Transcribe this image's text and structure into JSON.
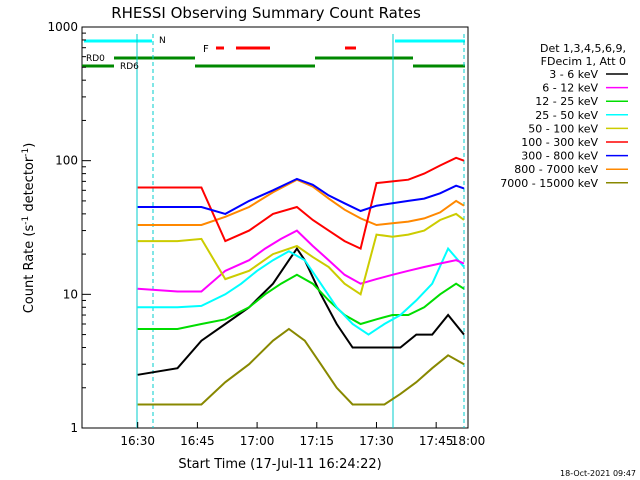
{
  "chart_data": {
    "type": "line",
    "title": "RHESSI Observing Summary Count Rates",
    "xlabel": "Start Time (17-Jul-11 16:24:22)",
    "ylabel_main": "Count Rate (s",
    "ylabel_sup1": "-1",
    "ylabel_mid": " detector",
    "ylabel_sup2": "-1",
    "ylabel_end": ")",
    "timestamp": "18-Oct-2021 09:47",
    "y_scale": "log",
    "ylim": [
      1,
      1000
    ],
    "xlim_minutes": [
      16.0,
      113.0
    ],
    "x_ticks": [
      {
        "label": "16:30",
        "min": 30
      },
      {
        "label": "16:45",
        "min": 45
      },
      {
        "label": "17:00",
        "min": 60
      },
      {
        "label": "17:15",
        "min": 75
      },
      {
        "label": "17:30",
        "min": 90
      },
      {
        "label": "17:45",
        "min": 105
      },
      {
        "label": "18:00",
        "min": 120
      }
    ],
    "y_ticks": [
      {
        "label": "1",
        "v": 1
      },
      {
        "label": "10",
        "v": 10
      },
      {
        "label": "100",
        "v": 100
      },
      {
        "label": "1000",
        "v": 1000
      }
    ],
    "legend_header": [
      "Det 1,3,4,5,6,9,",
      "FDecim 1, Att 0"
    ],
    "legend_position": "right",
    "series": [
      {
        "name": "3 - 6 keV",
        "color": "#000000",
        "points": [
          [
            30,
            2.5
          ],
          [
            40,
            2.8
          ],
          [
            46,
            4.5
          ],
          [
            52,
            6
          ],
          [
            58,
            8
          ],
          [
            64,
            12
          ],
          [
            68,
            18
          ],
          [
            70,
            22
          ],
          [
            72,
            18
          ],
          [
            76,
            10
          ],
          [
            80,
            6
          ],
          [
            84,
            4
          ],
          [
            88,
            4
          ],
          [
            92,
            4
          ],
          [
            96,
            4
          ],
          [
            100,
            5
          ],
          [
            104,
            5
          ],
          [
            108,
            7
          ],
          [
            112,
            5
          ]
        ]
      },
      {
        "name": "6 - 12 keV",
        "color": "#ff00ff",
        "points": [
          [
            30,
            11
          ],
          [
            40,
            10.5
          ],
          [
            46,
            10.5
          ],
          [
            52,
            15
          ],
          [
            58,
            18
          ],
          [
            62,
            22
          ],
          [
            66,
            26
          ],
          [
            70,
            30
          ],
          [
            74,
            23
          ],
          [
            78,
            18
          ],
          [
            82,
            14
          ],
          [
            86,
            12
          ],
          [
            90,
            13
          ],
          [
            94,
            14
          ],
          [
            98,
            15
          ],
          [
            102,
            16
          ],
          [
            106,
            17
          ],
          [
            110,
            18
          ],
          [
            112,
            17
          ]
        ]
      },
      {
        "name": "12 - 25 keV",
        "color": "#00dd00",
        "points": [
          [
            30,
            5.5
          ],
          [
            40,
            5.5
          ],
          [
            46,
            6
          ],
          [
            52,
            6.5
          ],
          [
            58,
            8
          ],
          [
            62,
            10
          ],
          [
            66,
            12
          ],
          [
            70,
            14
          ],
          [
            74,
            12
          ],
          [
            78,
            9
          ],
          [
            82,
            7
          ],
          [
            86,
            6
          ],
          [
            90,
            6.5
          ],
          [
            94,
            7
          ],
          [
            98,
            7
          ],
          [
            102,
            8
          ],
          [
            106,
            10
          ],
          [
            110,
            12
          ],
          [
            112,
            11
          ]
        ]
      },
      {
        "name": "25 - 50 keV",
        "color": "#00ffff",
        "points": [
          [
            30,
            8
          ],
          [
            40,
            8
          ],
          [
            46,
            8.2
          ],
          [
            52,
            10
          ],
          [
            56,
            12
          ],
          [
            60,
            15
          ],
          [
            64,
            18
          ],
          [
            68,
            21
          ],
          [
            72,
            18
          ],
          [
            76,
            12
          ],
          [
            80,
            8
          ],
          [
            84,
            6
          ],
          [
            88,
            5
          ],
          [
            92,
            6
          ],
          [
            96,
            7
          ],
          [
            100,
            9
          ],
          [
            104,
            12
          ],
          [
            108,
            22
          ],
          [
            112,
            16
          ]
        ]
      },
      {
        "name": "50 - 100 keV",
        "color": "#cccc00",
        "points": [
          [
            30,
            25
          ],
          [
            40,
            25
          ],
          [
            46,
            26
          ],
          [
            52,
            13
          ],
          [
            58,
            15
          ],
          [
            64,
            20
          ],
          [
            70,
            23
          ],
          [
            74,
            19
          ],
          [
            78,
            16
          ],
          [
            82,
            12
          ],
          [
            86,
            10
          ],
          [
            90,
            28
          ],
          [
            94,
            27
          ],
          [
            98,
            28
          ],
          [
            102,
            30
          ],
          [
            106,
            36
          ],
          [
            110,
            40
          ],
          [
            112,
            36
          ]
        ]
      },
      {
        "name": "100 - 300 keV",
        "color": "#ff0000",
        "points": [
          [
            30,
            63
          ],
          [
            40,
            63
          ],
          [
            46,
            63
          ],
          [
            52,
            25
          ],
          [
            58,
            30
          ],
          [
            64,
            40
          ],
          [
            70,
            45
          ],
          [
            74,
            36
          ],
          [
            78,
            30
          ],
          [
            82,
            25
          ],
          [
            86,
            22
          ],
          [
            90,
            68
          ],
          [
            94,
            70
          ],
          [
            98,
            72
          ],
          [
            102,
            80
          ],
          [
            106,
            92
          ],
          [
            110,
            105
          ],
          [
            112,
            100
          ]
        ]
      },
      {
        "name": "300 - 800 keV",
        "color": "#0000ff",
        "points": [
          [
            30,
            45
          ],
          [
            40,
            45
          ],
          [
            46,
            45
          ],
          [
            52,
            40
          ],
          [
            58,
            50
          ],
          [
            64,
            60
          ],
          [
            70,
            73
          ],
          [
            74,
            66
          ],
          [
            78,
            55
          ],
          [
            82,
            48
          ],
          [
            86,
            42
          ],
          [
            90,
            46
          ],
          [
            94,
            48
          ],
          [
            98,
            50
          ],
          [
            102,
            52
          ],
          [
            106,
            57
          ],
          [
            110,
            65
          ],
          [
            112,
            62
          ]
        ]
      },
      {
        "name": "800 - 7000 keV",
        "color": "#ff8800",
        "points": [
          [
            30,
            33
          ],
          [
            40,
            33
          ],
          [
            46,
            33
          ],
          [
            52,
            38
          ],
          [
            58,
            45
          ],
          [
            64,
            58
          ],
          [
            70,
            72
          ],
          [
            74,
            64
          ],
          [
            78,
            52
          ],
          [
            82,
            43
          ],
          [
            86,
            37
          ],
          [
            90,
            33
          ],
          [
            94,
            34
          ],
          [
            98,
            35
          ],
          [
            102,
            37
          ],
          [
            106,
            41
          ],
          [
            110,
            50
          ],
          [
            112,
            46
          ]
        ]
      },
      {
        "name": "7000 - 15000 keV",
        "color": "#888800",
        "points": [
          [
            30,
            1.5
          ],
          [
            40,
            1.5
          ],
          [
            46,
            1.5
          ],
          [
            52,
            2.2
          ],
          [
            58,
            3
          ],
          [
            64,
            4.5
          ],
          [
            68,
            5.5
          ],
          [
            72,
            4.5
          ],
          [
            76,
            3
          ],
          [
            80,
            2
          ],
          [
            84,
            1.5
          ],
          [
            88,
            1.5
          ],
          [
            92,
            1.5
          ],
          [
            96,
            1.8
          ],
          [
            100,
            2.2
          ],
          [
            104,
            2.8
          ],
          [
            108,
            3.5
          ],
          [
            112,
            3
          ]
        ]
      }
    ],
    "annotations": [
      {
        "text": "N",
        "color": "#00cccc"
      },
      {
        "text": "F",
        "color": "#ff0000"
      },
      {
        "text": "RD0",
        "color": "#008800"
      },
      {
        "text": "RD6",
        "color": "#008800"
      }
    ]
  }
}
